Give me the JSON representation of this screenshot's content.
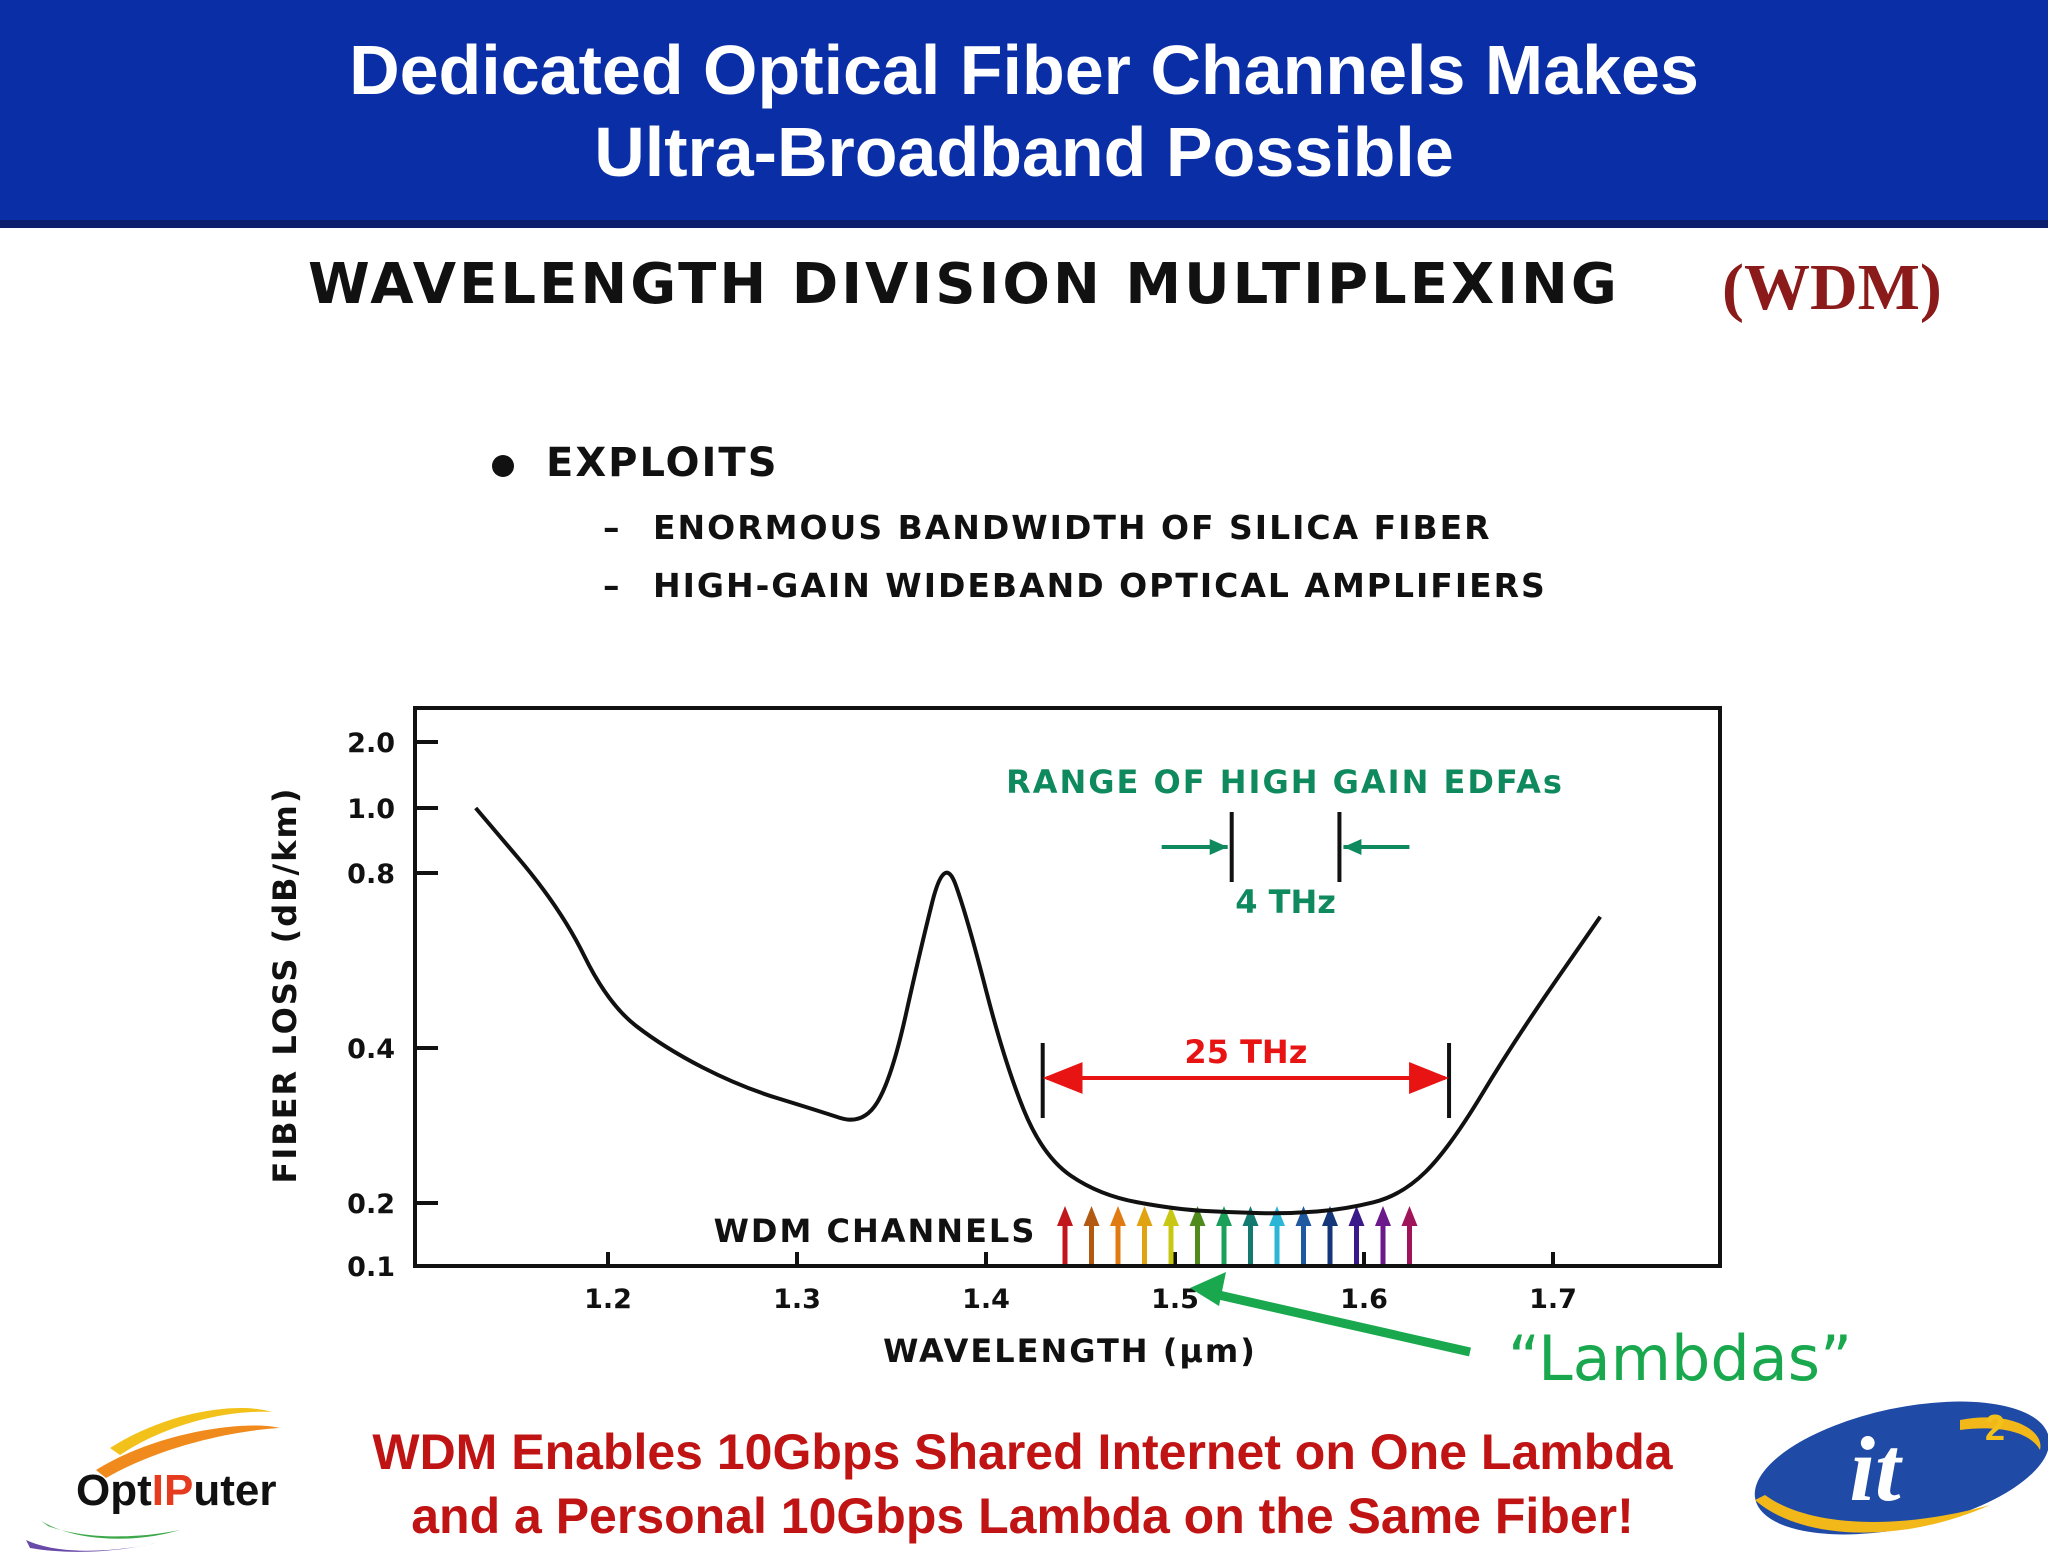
{
  "header": {
    "title_line1": "Dedicated Optical Fiber Channels Makes",
    "title_line2": "Ultra-Broadband Possible",
    "bg_color": "#0a2ea6"
  },
  "wdm": {
    "heading": "WAVELENGTH DIVISION MULTIPLEXING",
    "abbr": "(WDM)"
  },
  "exploits": {
    "label": "EXPLOITS",
    "items": [
      "ENORMOUS BANDWIDTH OF SILICA FIBER",
      "HIGH-GAIN WIDEBAND OPTICAL AMPLIFIERS"
    ]
  },
  "chart_data": {
    "type": "line",
    "xlabel": "WAVELENGTH (μm)",
    "ylabel": "FIBER LOSS (dB/km)",
    "xlim": [
      1.1,
      1.79
    ],
    "x_ticks": [
      "1.2",
      "1.3",
      "1.4",
      "1.5",
      "1.6",
      "1.7"
    ],
    "y_ticks": [
      "2.0",
      "1.0",
      "0.8",
      "0.4",
      "0.2",
      "0.1"
    ],
    "series": [
      {
        "x": [
          1.13,
          1.175,
          1.2,
          1.23,
          1.27,
          1.31,
          1.335,
          1.35,
          1.365,
          1.378,
          1.39,
          1.41,
          1.43,
          1.46,
          1.5,
          1.53,
          1.56,
          1.59,
          1.62,
          1.645,
          1.68,
          1.725
        ],
        "y": [
          1.0,
          0.72,
          0.5,
          0.4,
          0.35,
          0.32,
          0.3,
          0.36,
          0.62,
          0.86,
          0.7,
          0.38,
          0.26,
          0.21,
          0.19,
          0.185,
          0.183,
          0.19,
          0.21,
          0.27,
          0.42,
          0.7
        ]
      }
    ],
    "annotations": {
      "edfa_label": "RANGE OF HIGH GAIN EDFAs",
      "edfa_width": "4 THz",
      "edfa_range": [
        1.53,
        1.587
      ],
      "band_width": "25 THz",
      "band_range": [
        1.43,
        1.645
      ],
      "channels_label": "WDM CHANNELS",
      "lambdas_label": "“Lambdas”",
      "channel_colors": [
        "#c0161c",
        "#b25a12",
        "#e07a12",
        "#e0a412",
        "#c8c814",
        "#4e8a1c",
        "#1aa05a",
        "#127a6e",
        "#2ab6d4",
        "#1f5aa0",
        "#14367a",
        "#3a1a8a",
        "#6a1a8a",
        "#a0145a"
      ],
      "edfa_color": "#0f8a5e",
      "band_color": "#e81414",
      "lambda_color": "#19a84e"
    }
  },
  "footer": {
    "line1": "WDM Enables 10Gbps Shared Internet on One Lambda",
    "line2": "and a Personal 10Gbps Lambda on the Same Fiber!",
    "logo_left_a": "Opt",
    "logo_left_b": "IP",
    "logo_left_c": "uter",
    "logo_right": "it",
    "logo_right_sup": "2"
  }
}
